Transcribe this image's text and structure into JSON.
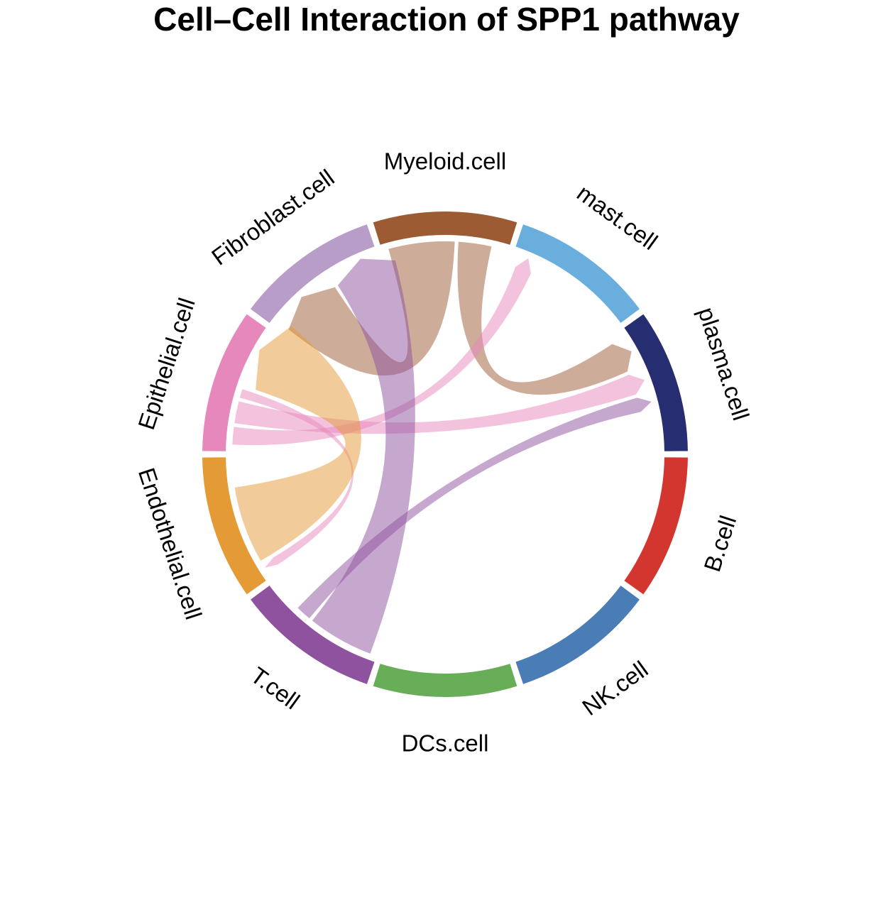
{
  "chart_data": {
    "type": "chord",
    "title": "Cell–Cell Interaction of SPP1 pathway",
    "sectors": [
      {
        "name": "Myeloid.cell",
        "color": "#9C5B33"
      },
      {
        "name": "mast.cell",
        "color": "#6AAEDE"
      },
      {
        "name": "plasma.cell",
        "color": "#262E71"
      },
      {
        "name": "B.cell",
        "color": "#D3362F"
      },
      {
        "name": "NK.cell",
        "color": "#4A7CB5"
      },
      {
        "name": "DCs.cell",
        "color": "#68AE59"
      },
      {
        "name": "T.cell",
        "color": "#8E529F"
      },
      {
        "name": "Endothelial.cell",
        "color": "#E49A35"
      },
      {
        "name": "Epithelial.cell",
        "color": "#E788BD"
      },
      {
        "name": "Fibroblast.cell",
        "color": "#B79DC8"
      }
    ],
    "links": [
      {
        "source": "Myeloid.cell",
        "target": "Fibroblast.cell",
        "weight": 0.3
      },
      {
        "source": "Myeloid.cell",
        "target": "plasma.cell",
        "weight": 0.15
      },
      {
        "source": "Epithelial.cell",
        "target": "mast.cell",
        "weight": 0.08
      },
      {
        "source": "Epithelial.cell",
        "target": "plasma.cell",
        "weight": 0.1
      },
      {
        "source": "Epithelial.cell",
        "target": "Endothelial.cell",
        "weight": 0.04
      },
      {
        "source": "Endothelial.cell",
        "target": "Epithelial.cell",
        "weight": 0.35
      },
      {
        "source": "T.cell",
        "target": "Fibroblast.cell",
        "weight": 0.3
      },
      {
        "source": "T.cell",
        "target": "plasma.cell",
        "weight": 0.07
      }
    ]
  }
}
